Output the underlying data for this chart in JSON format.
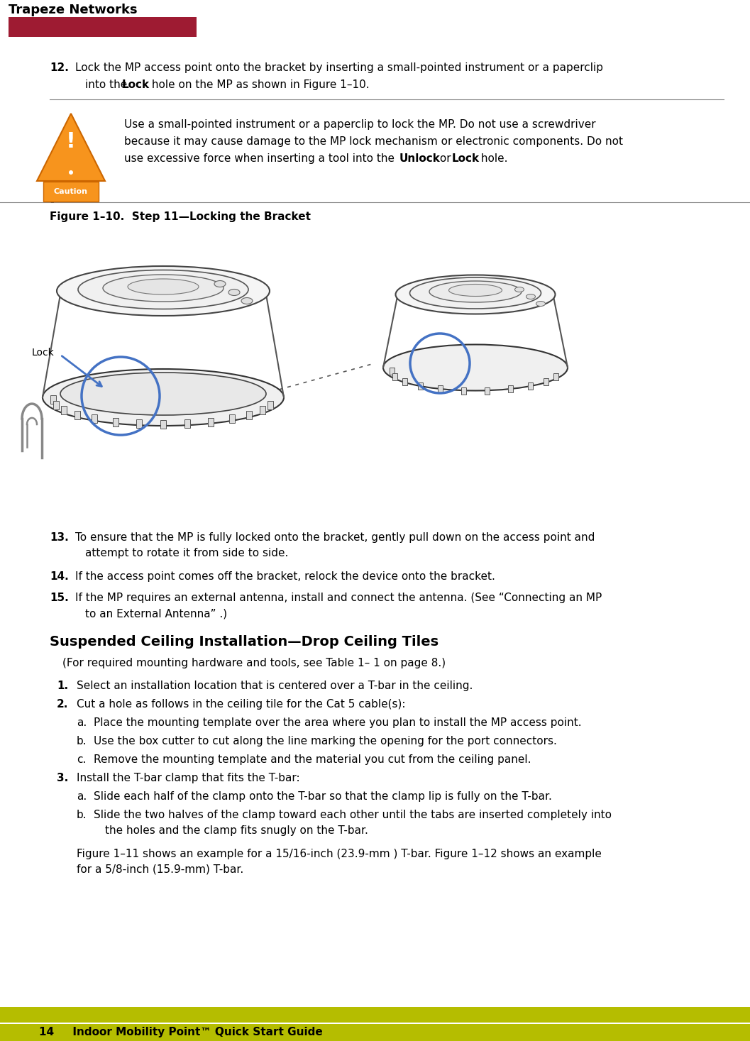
{
  "bg_color": "#ffffff",
  "header_bar_color": "#9e1b32",
  "footer_bar_color": "#b5bd00",
  "header_text": "Trapeze Networks",
  "footer_text": "14     Indoor Mobility Point™ Quick Start Guide",
  "caution_orange": "#f7941d",
  "blue_highlight": "#4472c4",
  "figure_caption": "Figure 1–10.  Step 11—Locking the Bracket",
  "section_title": "Suspended Ceiling Installation—Drop Ceiling Tiles"
}
